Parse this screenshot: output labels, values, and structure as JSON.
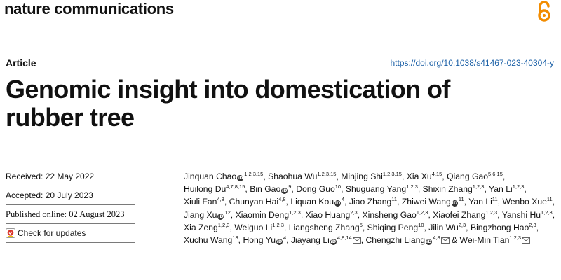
{
  "header": {
    "journal": "nature communications",
    "article_type": "Article",
    "doi": "https://doi.org/10.1038/s41467-023-40304-y"
  },
  "title": {
    "line1": "Genomic insight into domestication of",
    "line2": "rubber tree"
  },
  "meta": {
    "received": "Received: 22 May 2022",
    "accepted": "Accepted: 20 July 2023",
    "published": "Published online: 02 August 2023",
    "check_updates": "Check for updates"
  },
  "authors": [
    {
      "name": "Jinquan Chao",
      "sup": "1,2,3,15",
      "orcid": true
    },
    {
      "name": "Shaohua Wu",
      "sup": "1,2,3,15"
    },
    {
      "name": "Minjing Shi",
      "sup": "1,2,3,15"
    },
    {
      "name": "Xia Xu",
      "sup": "4,15"
    },
    {
      "name": "Qiang Gao",
      "sup": "5,6,15"
    },
    {
      "name": "Huilong Du",
      "sup": "4,7,8,15"
    },
    {
      "name": "Bin Gao",
      "sup": "9",
      "orcid": true
    },
    {
      "name": "Dong Guo",
      "sup": "10"
    },
    {
      "name": "Shuguang Yang",
      "sup": "1,2,3"
    },
    {
      "name": "Shixin Zhang",
      "sup": "1,2,3"
    },
    {
      "name": "Yan Li",
      "sup": "1,2,3"
    },
    {
      "name": "Xiuli Fan",
      "sup": "4,8"
    },
    {
      "name": "Chunyan Hai",
      "sup": "4,8"
    },
    {
      "name": "Liquan Kou",
      "sup": "4",
      "orcid": true
    },
    {
      "name": "Jiao Zhang",
      "sup": "11"
    },
    {
      "name": "Zhiwei Wang",
      "sup": "11",
      "orcid": true
    },
    {
      "name": "Yan Li",
      "sup": "11"
    },
    {
      "name": "Wenbo Xue",
      "sup": "11"
    },
    {
      "name": "Jiang Xu",
      "sup": "12",
      "orcid": true
    },
    {
      "name": "Xiaomin Deng",
      "sup": "1,2,3"
    },
    {
      "name": "Xiao Huang",
      "sup": "2,3"
    },
    {
      "name": "Xinsheng Gao",
      "sup": "1,2,3"
    },
    {
      "name": "Xiaofei Zhang",
      "sup": "1,2,3"
    },
    {
      "name": "Yanshi Hu",
      "sup": "1,2,3"
    },
    {
      "name": "Xia Zeng",
      "sup": "1,2,3"
    },
    {
      "name": "Weiguo Li",
      "sup": "1,2,3"
    },
    {
      "name": "Liangsheng Zhang",
      "sup": "5"
    },
    {
      "name": "Shiqing Peng",
      "sup": "10"
    },
    {
      "name": "Jilin Wu",
      "sup": "2,3"
    },
    {
      "name": "Bingzhong Hao",
      "sup": "2,3"
    },
    {
      "name": "Xuchu Wang",
      "sup": "13"
    },
    {
      "name": "Hong Yu",
      "sup": "4",
      "orcid": true
    },
    {
      "name": "Jiayang Li",
      "sup": "4,8,14",
      "orcid": true,
      "mail": true
    },
    {
      "name": "Chengzhi Liang",
      "sup": "4,8",
      "orcid": true,
      "mail": true
    },
    {
      "name": "Wei-Min Tian",
      "sup": "1,2,3",
      "mail": true
    }
  ],
  "icons": {
    "open_access": "open-access-icon",
    "orcid": "orcid-icon",
    "mail": "envelope-icon",
    "check_updates": "crossmark-icon"
  },
  "colors": {
    "doi_link": "#1a5fa6",
    "open_access": "#f28c00"
  }
}
